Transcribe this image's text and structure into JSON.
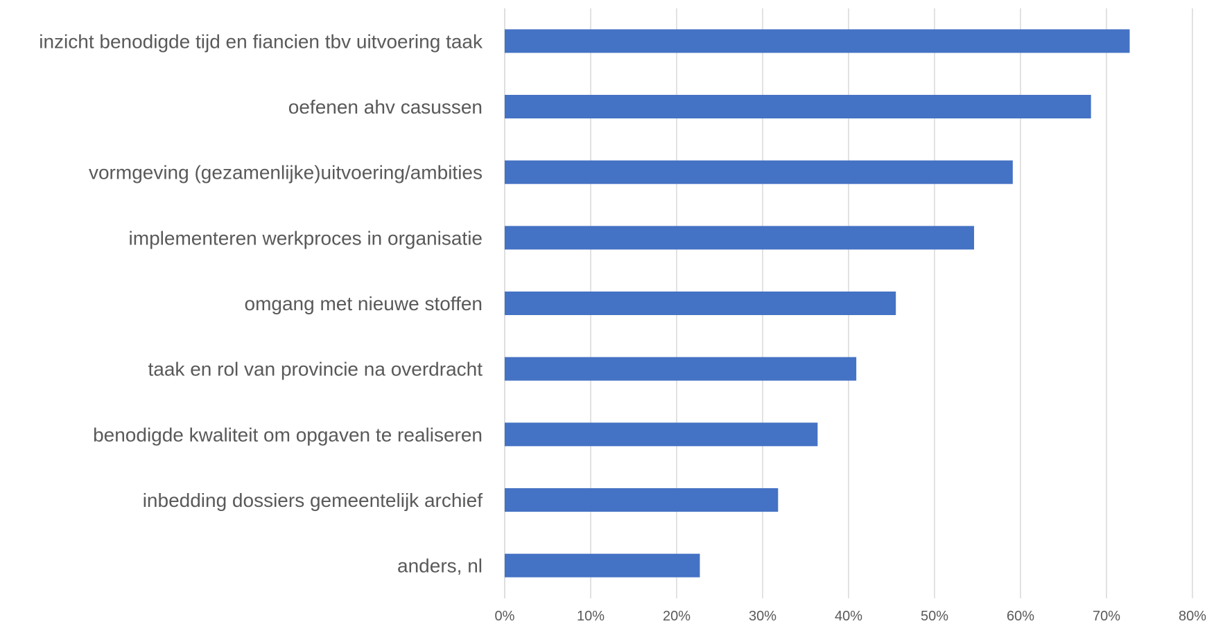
{
  "chart_data": {
    "type": "bar",
    "orientation": "horizontal",
    "categories": [
      "inzicht benodigde tijd en fiancien tbv uitvoering taak",
      "oefenen ahv casussen",
      "vormgeving (gezamenlijke)uitvoering/ambities",
      "implementeren werkproces in organisatie",
      "omgang met nieuwe stoffen",
      "taak en rol van provincie na overdracht",
      "benodigde kwaliteit om opgaven te realiseren",
      "inbedding dossiers gemeentelijk archief",
      "anders, nl"
    ],
    "values": [
      0.727,
      0.682,
      0.591,
      0.546,
      0.455,
      0.409,
      0.364,
      0.318,
      0.227
    ],
    "xlim": [
      0,
      0.8
    ],
    "x_ticks": [
      "0%",
      "10%",
      "20%",
      "30%",
      "40%",
      "50%",
      "60%",
      "70%",
      "80%"
    ],
    "grid": "vertical",
    "legend": "none",
    "colors": {
      "bar": "#4472C4",
      "grid": "#D9D9D9",
      "text": "#595959"
    }
  }
}
